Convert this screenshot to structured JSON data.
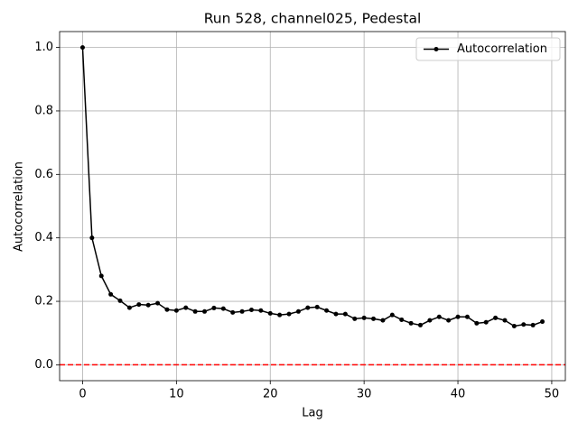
{
  "chart_data": {
    "type": "line",
    "title": "Run 528, channel025, Pedestal",
    "x_label": "Lag",
    "y_label": "Autocorrelation",
    "x": [
      0,
      1,
      2,
      3,
      4,
      5,
      6,
      7,
      8,
      9,
      10,
      11,
      12,
      13,
      14,
      15,
      16,
      17,
      18,
      19,
      20,
      21,
      22,
      23,
      24,
      25,
      26,
      27,
      28,
      29,
      30,
      31,
      32,
      33,
      34,
      35,
      36,
      37,
      38,
      39,
      40,
      41,
      42,
      43,
      44,
      45,
      46,
      47,
      48,
      49
    ],
    "series": [
      {
        "name": "Autocorrelation",
        "color": "#000000",
        "values": [
          1.0,
          0.4,
          0.28,
          0.222,
          0.202,
          0.18,
          0.19,
          0.188,
          0.194,
          0.174,
          0.171,
          0.18,
          0.168,
          0.168,
          0.179,
          0.177,
          0.165,
          0.168,
          0.173,
          0.171,
          0.162,
          0.157,
          0.16,
          0.168,
          0.18,
          0.182,
          0.171,
          0.16,
          0.16,
          0.145,
          0.148,
          0.145,
          0.14,
          0.157,
          0.142,
          0.131,
          0.125,
          0.14,
          0.151,
          0.14,
          0.151,
          0.151,
          0.131,
          0.134,
          0.148,
          0.14,
          0.122,
          0.127,
          0.125,
          0.136
        ]
      }
    ],
    "hline": {
      "value": 0,
      "color": "#ff0000"
    },
    "xlim": [
      -2.45,
      51.45
    ],
    "xticks": [
      0,
      10,
      20,
      30,
      40,
      50
    ],
    "ylim": [
      -0.05,
      1.05
    ],
    "yticks": [
      {
        "value": 0,
        "label": "0.0"
      },
      {
        "value": 0.2,
        "label": "0.2"
      },
      {
        "value": 0.4,
        "label": "0.4"
      },
      {
        "value": 0.6,
        "label": "0.6"
      },
      {
        "value": 0.8,
        "label": "0.8"
      },
      {
        "value": 1,
        "label": "1.0"
      }
    ],
    "grid": true,
    "legend": "upper-right"
  }
}
